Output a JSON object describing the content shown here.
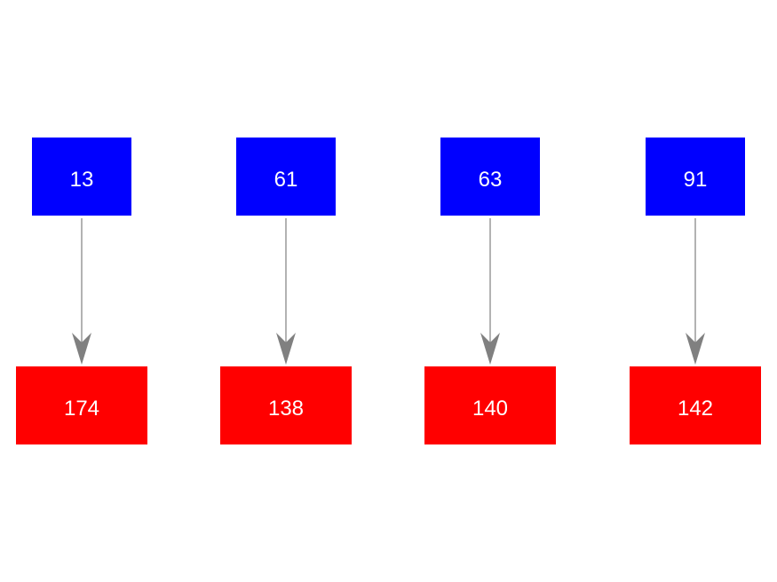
{
  "colors": {
    "source": "#0000ff",
    "target": "#ff0000",
    "edge": "#808080",
    "label": "#ffffff"
  },
  "pairs": [
    {
      "source": "13",
      "target": "174"
    },
    {
      "source": "61",
      "target": "138"
    },
    {
      "source": "63",
      "target": "140"
    },
    {
      "source": "91",
      "target": "142"
    }
  ]
}
